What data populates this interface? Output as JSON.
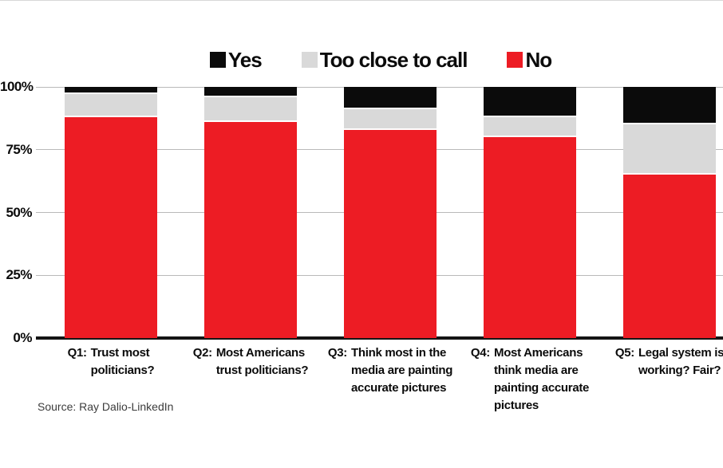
{
  "chart_data": {
    "type": "bar",
    "stacked": true,
    "title": "",
    "categories": [
      {
        "prefix": "Q1:",
        "lines": [
          "Trust most",
          "politicians?"
        ]
      },
      {
        "prefix": "Q2:",
        "lines": [
          "Most Americans",
          "trust politicians?"
        ]
      },
      {
        "prefix": "Q3:",
        "lines": [
          "Think most in the",
          "media are painting",
          "accurate pictures"
        ]
      },
      {
        "prefix": "Q4:",
        "lines": [
          "Most Americans",
          "think media are",
          "painting accurate",
          "pictures"
        ]
      },
      {
        "prefix": "Q5:",
        "lines": [
          "Legal system is",
          "working? Fair?"
        ]
      }
    ],
    "series": [
      {
        "name": "Yes",
        "color": "#0b0b0b",
        "values": [
          3,
          4,
          9,
          12,
          15
        ]
      },
      {
        "name": "Too close to call",
        "color": "#d9d9d9",
        "values": [
          9,
          10,
          8,
          8,
          20
        ]
      },
      {
        "name": "No",
        "color": "#ed1c24",
        "values": [
          88,
          86,
          83,
          80,
          65
        ]
      }
    ],
    "ylim": [
      0,
      100
    ],
    "yticks": [
      {
        "value": 0,
        "label": "0%"
      },
      {
        "value": 25,
        "label": "25%"
      },
      {
        "value": 50,
        "label": "50%"
      },
      {
        "value": 75,
        "label": "75%"
      },
      {
        "value": 100,
        "label": "100%"
      }
    ],
    "legend_position": "top",
    "grid": true
  },
  "colors": {
    "grid": "#b9b9b9",
    "axis": "#151515",
    "text": "#0b0b0b",
    "source_text": "#3c3c3c"
  },
  "source": "Source: Ray Dalio-LinkedIn"
}
